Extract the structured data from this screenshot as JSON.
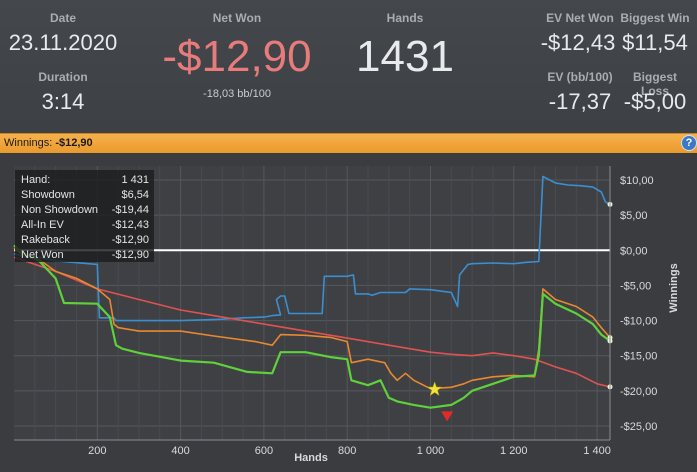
{
  "header": {
    "date_label": "Date",
    "date_value": "23.11.2020",
    "duration_label": "Duration",
    "duration_value": "3:14",
    "netwon_label": "Net Won",
    "netwon_value": "-$12,90",
    "netwon_sub": "-18,03 bb/100",
    "hands_label": "Hands",
    "hands_value": "1431",
    "evnet_label": "EV Net Won",
    "evnet_value": "-$12,43",
    "biggestwin_label": "Biggest Win",
    "biggestwin_value": "$11,54",
    "evbb_label": "EV (bb/100)",
    "evbb_value": "-17,37",
    "biggestloss_label": "Biggest Loss",
    "biggestloss_value": "-$5,00",
    "netwon_color": "#e87b7b"
  },
  "bar": {
    "label": "Winnings:",
    "value": "-$12,90",
    "help_icon": "?"
  },
  "tooltip": {
    "rows": [
      {
        "k": "Hand:",
        "v": "1 431"
      },
      {
        "k": "Showdown",
        "v": "$6,54"
      },
      {
        "k": "Non Showdown",
        "v": "-$19,44"
      },
      {
        "k": "All-In EV",
        "v": "-$12,43"
      },
      {
        "k": "Rakeback",
        "v": "-$12,90"
      },
      {
        "k": "Net Won",
        "v": "-$12,90"
      }
    ]
  },
  "chart_data": {
    "type": "line",
    "xlabel": "Hands",
    "ylabel": "Winnings",
    "xlim": [
      0,
      1431
    ],
    "ylim": [
      -27,
      12
    ],
    "x_ticks": [
      200,
      400,
      600,
      800,
      1000,
      1200,
      1400
    ],
    "x_tick_labels": [
      "200",
      "400",
      "600",
      "800",
      "1 000",
      "1 200",
      "1 400"
    ],
    "y_ticks": [
      10,
      5,
      0,
      -5,
      -10,
      -15,
      -20,
      -25
    ],
    "y_tick_labels": [
      "$10,00",
      "$5,00",
      "$0,00",
      "-$5,00",
      "-$10,00",
      "-$15,00",
      "-$20,00",
      "-$25,00"
    ],
    "series": [
      {
        "name": "Showdown",
        "color": "#3b8fd0",
        "points": [
          [
            0,
            -0.5
          ],
          [
            30,
            -1
          ],
          [
            60,
            -1
          ],
          [
            100,
            -1.5
          ],
          [
            200,
            -2
          ],
          [
            205,
            -9.6
          ],
          [
            240,
            -9.6
          ],
          [
            245,
            -10
          ],
          [
            300,
            -10
          ],
          [
            350,
            -10
          ],
          [
            400,
            -10
          ],
          [
            450,
            -9.9
          ],
          [
            500,
            -9.8
          ],
          [
            550,
            -9.6
          ],
          [
            600,
            -9.5
          ],
          [
            620,
            -9.3
          ],
          [
            640,
            -9.2
          ],
          [
            630,
            -7
          ],
          [
            640,
            -6.5
          ],
          [
            650,
            -6.5
          ],
          [
            660,
            -9
          ],
          [
            700,
            -9
          ],
          [
            740,
            -9
          ],
          [
            745,
            -3.7
          ],
          [
            800,
            -3.7
          ],
          [
            815,
            -3.5
          ],
          [
            820,
            -6.2
          ],
          [
            850,
            -6.2
          ],
          [
            860,
            -6.4
          ],
          [
            870,
            -6.2
          ],
          [
            880,
            -6
          ],
          [
            900,
            -6
          ],
          [
            940,
            -6
          ],
          [
            950,
            -5.5
          ],
          [
            1000,
            -5.6
          ],
          [
            1050,
            -6
          ],
          [
            1065,
            -8
          ],
          [
            1070,
            -3.5
          ],
          [
            1090,
            -2
          ],
          [
            1100,
            -1.9
          ],
          [
            1150,
            -1.8
          ],
          [
            1200,
            -1.9
          ],
          [
            1230,
            -1.7
          ],
          [
            1260,
            -1.6
          ],
          [
            1270,
            10.5
          ],
          [
            1300,
            9.6
          ],
          [
            1330,
            9.3
          ],
          [
            1360,
            9.2
          ],
          [
            1390,
            9
          ],
          [
            1410,
            8.3
          ],
          [
            1420,
            6.9
          ],
          [
            1431,
            6.54
          ]
        ]
      },
      {
        "name": "Non Showdown",
        "color": "#e05252",
        "points": [
          [
            0,
            -1
          ],
          [
            100,
            -3
          ],
          [
            200,
            -5.5
          ],
          [
            300,
            -7
          ],
          [
            400,
            -8.5
          ],
          [
            500,
            -9.5
          ],
          [
            600,
            -10.5
          ],
          [
            700,
            -11.5
          ],
          [
            800,
            -12.5
          ],
          [
            900,
            -13.5
          ],
          [
            1000,
            -14.5
          ],
          [
            1050,
            -14.8
          ],
          [
            1100,
            -15
          ],
          [
            1150,
            -14.6
          ],
          [
            1200,
            -15
          ],
          [
            1250,
            -15.5
          ],
          [
            1300,
            -16.6
          ],
          [
            1350,
            -17.5
          ],
          [
            1400,
            -19
          ],
          [
            1431,
            -19.44
          ]
        ]
      },
      {
        "name": "All-In EV",
        "color": "#e8892f",
        "points": [
          [
            0,
            0.3
          ],
          [
            20,
            -0.6
          ],
          [
            60,
            -1.3
          ],
          [
            100,
            -3
          ],
          [
            150,
            -4
          ],
          [
            200,
            -5.5
          ],
          [
            230,
            -7
          ],
          [
            240,
            -10.5
          ],
          [
            250,
            -11
          ],
          [
            300,
            -11.5
          ],
          [
            400,
            -11.5
          ],
          [
            480,
            -12.2
          ],
          [
            580,
            -13
          ],
          [
            620,
            -13.5
          ],
          [
            640,
            -12
          ],
          [
            700,
            -12.1
          ],
          [
            760,
            -12.4
          ],
          [
            800,
            -13
          ],
          [
            810,
            -16
          ],
          [
            850,
            -15.5
          ],
          [
            890,
            -16
          ],
          [
            905,
            -17.5
          ],
          [
            920,
            -18.5
          ],
          [
            940,
            -17.5
          ],
          [
            960,
            -18.5
          ],
          [
            1000,
            -19.7
          ],
          [
            1050,
            -19.5
          ],
          [
            1080,
            -19
          ],
          [
            1100,
            -18.5
          ],
          [
            1150,
            -18
          ],
          [
            1200,
            -17.8
          ],
          [
            1250,
            -18
          ],
          [
            1260,
            -14
          ],
          [
            1270,
            -5.5
          ],
          [
            1300,
            -7
          ],
          [
            1350,
            -8
          ],
          [
            1390,
            -9.5
          ],
          [
            1410,
            -11
          ],
          [
            1431,
            -12.43
          ]
        ]
      },
      {
        "name": "Net Won",
        "color": "#5fd13a",
        "points": [
          [
            0,
            0.7
          ],
          [
            20,
            -0.4
          ],
          [
            60,
            -1.5
          ],
          [
            100,
            -4
          ],
          [
            120,
            -7.5
          ],
          [
            200,
            -7.6
          ],
          [
            230,
            -9.5
          ],
          [
            245,
            -13.5
          ],
          [
            260,
            -14
          ],
          [
            300,
            -14.6
          ],
          [
            400,
            -15.7
          ],
          [
            480,
            -16
          ],
          [
            560,
            -17.3
          ],
          [
            620,
            -17.5
          ],
          [
            640,
            -14.5
          ],
          [
            700,
            -14.5
          ],
          [
            760,
            -15.2
          ],
          [
            800,
            -15.5
          ],
          [
            810,
            -18.5
          ],
          [
            850,
            -19.2
          ],
          [
            880,
            -18.5
          ],
          [
            900,
            -21
          ],
          [
            920,
            -21.5
          ],
          [
            960,
            -22
          ],
          [
            1000,
            -22.4
          ],
          [
            1050,
            -22
          ],
          [
            1080,
            -21
          ],
          [
            1100,
            -20
          ],
          [
            1150,
            -19
          ],
          [
            1200,
            -18
          ],
          [
            1250,
            -17.8
          ],
          [
            1260,
            -15
          ],
          [
            1270,
            -6.2
          ],
          [
            1300,
            -7.6
          ],
          [
            1350,
            -9
          ],
          [
            1390,
            -10.5
          ],
          [
            1410,
            -12
          ],
          [
            1431,
            -12.9
          ]
        ]
      }
    ],
    "zero_line_color": "#ffffff",
    "markers": [
      {
        "name": "best-hand-star",
        "x": 1010,
        "y": -19.8,
        "color": "#f2e23a"
      },
      {
        "name": "worst-hand-triangle",
        "x": 1040,
        "y": -23.5,
        "color": "#e02b2b"
      }
    ]
  }
}
